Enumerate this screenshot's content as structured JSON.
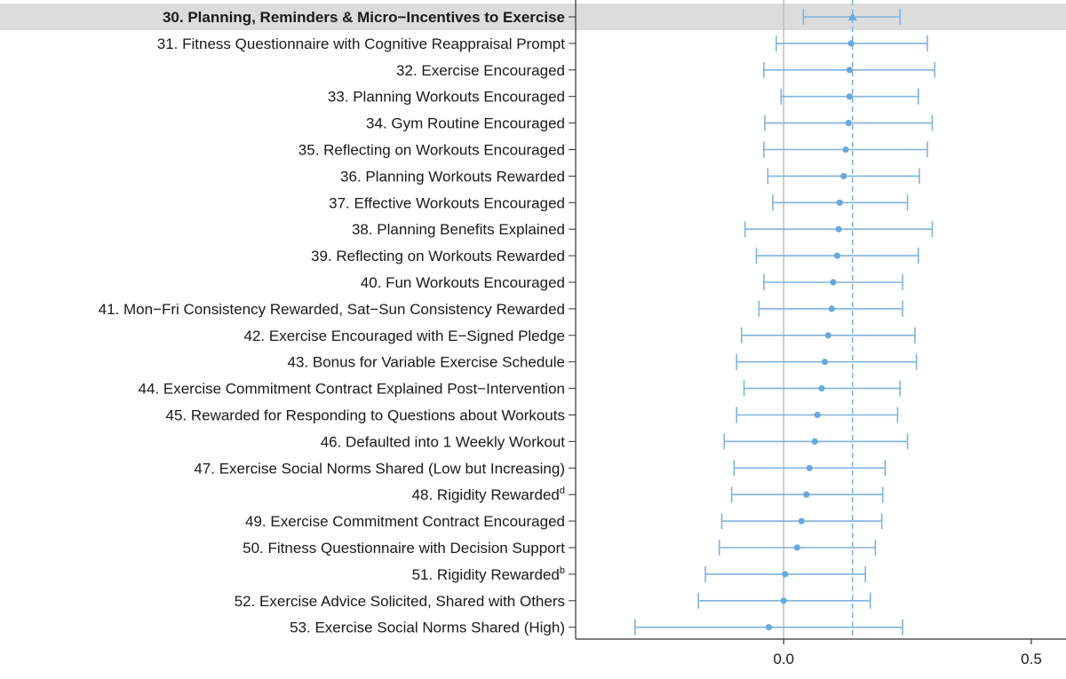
{
  "chart_data": {
    "type": "forest",
    "x_ticks": [
      0.0,
      0.5
    ],
    "x_tick_labels": [
      "0.0",
      "0.5"
    ],
    "xlim": [
      -0.42,
      0.57
    ],
    "reference_line": 0.0,
    "estimate_line": 0.139,
    "colors": {
      "interval": "#7fb3df",
      "point": "#6aa8dc",
      "highlight_band": "#dcdcdc",
      "zero_line": "#bdbdbd",
      "axis": "#333333"
    },
    "rows": [
      {
        "label": "30. Planning, Reminders & Micro−Incentives to Exercise",
        "sup": "",
        "estimate": 0.139,
        "lower": 0.04,
        "upper": 0.235,
        "highlight": true,
        "marker": "triangle"
      },
      {
        "label": "31. Fitness Questionnaire with Cognitive Reappraisal Prompt",
        "sup": "",
        "estimate": 0.136,
        "lower": -0.015,
        "upper": 0.29,
        "highlight": false,
        "marker": "circle"
      },
      {
        "label": "32. Exercise Encouraged",
        "sup": "",
        "estimate": 0.133,
        "lower": -0.04,
        "upper": 0.305,
        "highlight": false,
        "marker": "circle"
      },
      {
        "label": "33. Planning Workouts Encouraged",
        "sup": "",
        "estimate": 0.133,
        "lower": -0.005,
        "upper": 0.272,
        "highlight": false,
        "marker": "circle"
      },
      {
        "label": "34. Gym Routine Encouraged",
        "sup": "",
        "estimate": 0.131,
        "lower": -0.038,
        "upper": 0.3,
        "highlight": false,
        "marker": "circle"
      },
      {
        "label": "35. Reflecting on Workouts Encouraged",
        "sup": "",
        "estimate": 0.125,
        "lower": -0.04,
        "upper": 0.29,
        "highlight": false,
        "marker": "circle"
      },
      {
        "label": "36. Planning Workouts Rewarded",
        "sup": "",
        "estimate": 0.121,
        "lower": -0.032,
        "upper": 0.274,
        "highlight": false,
        "marker": "circle"
      },
      {
        "label": "37. Effective Workouts Encouraged",
        "sup": "",
        "estimate": 0.113,
        "lower": -0.022,
        "upper": 0.25,
        "highlight": false,
        "marker": "circle"
      },
      {
        "label": "38. Planning Benefits Explained",
        "sup": "",
        "estimate": 0.111,
        "lower": -0.078,
        "upper": 0.3,
        "highlight": false,
        "marker": "circle"
      },
      {
        "label": "39. Reflecting on Workouts Rewarded",
        "sup": "",
        "estimate": 0.108,
        "lower": -0.055,
        "upper": 0.272,
        "highlight": false,
        "marker": "circle"
      },
      {
        "label": "40. Fun Workouts Encouraged",
        "sup": "",
        "estimate": 0.1,
        "lower": -0.04,
        "upper": 0.24,
        "highlight": false,
        "marker": "circle"
      },
      {
        "label": "41. Mon−Fri Consistency Rewarded, Sat−Sun Consistency Rewarded",
        "sup": "",
        "estimate": 0.097,
        "lower": -0.05,
        "upper": 0.24,
        "highlight": false,
        "marker": "circle"
      },
      {
        "label": "42. Exercise Encouraged with E−Signed Pledge",
        "sup": "",
        "estimate": 0.09,
        "lower": -0.085,
        "upper": 0.265,
        "highlight": false,
        "marker": "circle"
      },
      {
        "label": "43. Bonus for Variable Exercise Schedule",
        "sup": "",
        "estimate": 0.083,
        "lower": -0.095,
        "upper": 0.268,
        "highlight": false,
        "marker": "circle"
      },
      {
        "label": "44. Exercise Commitment Contract Explained Post−Intervention",
        "sup": "",
        "estimate": 0.077,
        "lower": -0.08,
        "upper": 0.235,
        "highlight": false,
        "marker": "circle"
      },
      {
        "label": "45. Rewarded for Responding to Questions about Workouts",
        "sup": "",
        "estimate": 0.068,
        "lower": -0.095,
        "upper": 0.23,
        "highlight": false,
        "marker": "circle"
      },
      {
        "label": "46. Defaulted into 1 Weekly Workout",
        "sup": "",
        "estimate": 0.063,
        "lower": -0.12,
        "upper": 0.25,
        "highlight": false,
        "marker": "circle"
      },
      {
        "label": "47. Exercise Social Norms Shared (Low but Increasing)",
        "sup": "",
        "estimate": 0.052,
        "lower": -0.1,
        "upper": 0.205,
        "highlight": false,
        "marker": "circle"
      },
      {
        "label": "48. Rigidity Rewarded",
        "sup": "d",
        "estimate": 0.046,
        "lower": -0.105,
        "upper": 0.2,
        "highlight": false,
        "marker": "circle"
      },
      {
        "label": "49. Exercise Commitment Contract Encouraged",
        "sup": "",
        "estimate": 0.036,
        "lower": -0.125,
        "upper": 0.198,
        "highlight": false,
        "marker": "circle"
      },
      {
        "label": "50. Fitness Questionnaire with Decision Support",
        "sup": "",
        "estimate": 0.027,
        "lower": -0.13,
        "upper": 0.185,
        "highlight": false,
        "marker": "circle"
      },
      {
        "label": "51. Rigidity Rewarded",
        "sup": "b",
        "estimate": 0.003,
        "lower": -0.158,
        "upper": 0.165,
        "highlight": false,
        "marker": "circle"
      },
      {
        "label": "52. Exercise Advice Solicited, Shared with Others",
        "sup": "",
        "estimate": 0.0,
        "lower": -0.172,
        "upper": 0.175,
        "highlight": false,
        "marker": "circle"
      },
      {
        "label": "53. Exercise Social Norms Shared (High)",
        "sup": "",
        "estimate": -0.03,
        "lower": -0.3,
        "upper": 0.24,
        "highlight": false,
        "marker": "circle"
      }
    ]
  }
}
